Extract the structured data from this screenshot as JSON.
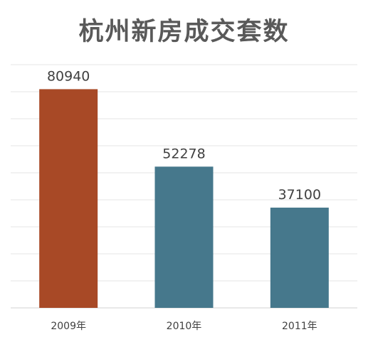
{
  "chart_data": {
    "type": "bar",
    "title": "杭州新房成交套数",
    "categories": [
      "2009年",
      "2010年",
      "2011年"
    ],
    "values": [
      80940,
      52278,
      37100
    ],
    "data_labels": [
      "80940",
      "52278",
      "37100"
    ],
    "bar_colors": [
      "#A84926",
      "#46788C",
      "#46788C"
    ],
    "ylim": [
      0,
      90000
    ],
    "grid": true,
    "xlabel": "",
    "ylabel": ""
  }
}
